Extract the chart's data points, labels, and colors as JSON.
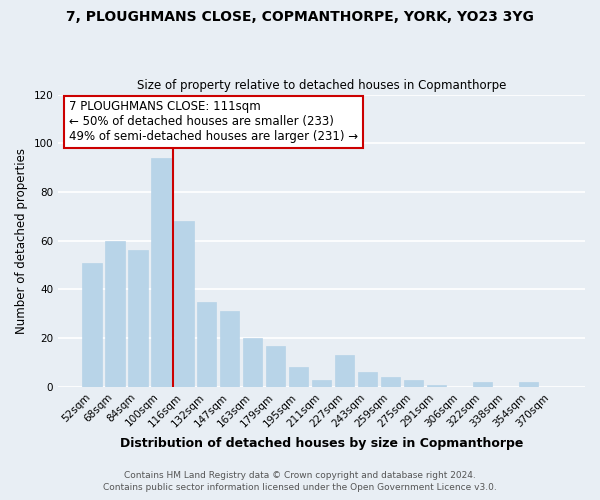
{
  "title": "7, PLOUGHMANS CLOSE, COPMANTHORPE, YORK, YO23 3YG",
  "subtitle": "Size of property relative to detached houses in Copmanthorpe",
  "xlabel": "Distribution of detached houses by size in Copmanthorpe",
  "ylabel": "Number of detached properties",
  "bar_labels": [
    "52sqm",
    "68sqm",
    "84sqm",
    "100sqm",
    "116sqm",
    "132sqm",
    "147sqm",
    "163sqm",
    "179sqm",
    "195sqm",
    "211sqm",
    "227sqm",
    "243sqm",
    "259sqm",
    "275sqm",
    "291sqm",
    "306sqm",
    "322sqm",
    "338sqm",
    "354sqm",
    "370sqm"
  ],
  "bar_heights": [
    51,
    60,
    56,
    94,
    68,
    35,
    31,
    20,
    17,
    8,
    3,
    13,
    6,
    4,
    3,
    1,
    0,
    2,
    0,
    2,
    0
  ],
  "bar_color": "#b8d4e8",
  "bar_edge_color": "#b8d4e8",
  "vline_color": "#cc0000",
  "annotation_title": "7 PLOUGHMANS CLOSE: 111sqm",
  "annotation_line1": "← 50% of detached houses are smaller (233)",
  "annotation_line2": "49% of semi-detached houses are larger (231) →",
  "annotation_box_facecolor": "#ffffff",
  "annotation_box_edgecolor": "#cc0000",
  "ylim": [
    0,
    120
  ],
  "yticks": [
    0,
    20,
    40,
    60,
    80,
    100,
    120
  ],
  "footer1": "Contains HM Land Registry data © Crown copyright and database right 2024.",
  "footer2": "Contains public sector information licensed under the Open Government Licence v3.0.",
  "bg_color": "#e8eef4",
  "plot_bg_color": "#e8eef4",
  "grid_color": "#ffffff"
}
